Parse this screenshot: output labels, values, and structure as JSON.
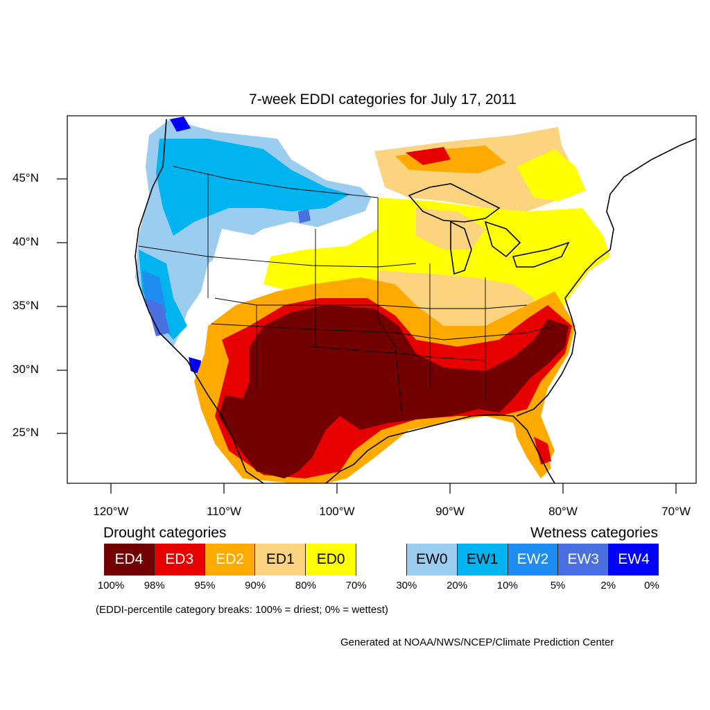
{
  "title": "7-week EDDI categories for July 17, 2011",
  "map": {
    "lat_labels": [
      "45°N",
      "40°N",
      "35°N",
      "30°N",
      "25°N"
    ],
    "lon_labels": [
      "120°W",
      "110°W",
      "100°W",
      "90°W",
      "80°W",
      "70°W"
    ],
    "colors": {
      "ED4": "#730000",
      "ED3": "#e60000",
      "ED2": "#ffaa00",
      "ED1": "#fcd37f",
      "ED0": "#ffff00",
      "neutral": "#ffffff",
      "EW0": "#9bcdf0",
      "EW1": "#00b4f0",
      "EW2": "#1e8cf0",
      "EW3": "#4a6fe0",
      "EW4": "#0000ff"
    }
  },
  "legend": {
    "drought_heading": "Drought categories",
    "wetness_heading": "Wetness categories",
    "categories": [
      {
        "label": "ED4",
        "color": "#730000",
        "text_color": "#ffffff"
      },
      {
        "label": "ED3",
        "color": "#e60000",
        "text_color": "#ffffff"
      },
      {
        "label": "ED2",
        "color": "#ffaa00",
        "text_color": "#ffffff"
      },
      {
        "label": "ED1",
        "color": "#fcd37f",
        "text_color": "#000000"
      },
      {
        "label": "ED0",
        "color": "#ffff00",
        "text_color": "#000000"
      },
      {
        "label": "",
        "color": "#ffffff",
        "text_color": "#000000"
      },
      {
        "label": "EW0",
        "color": "#9bcdf0",
        "text_color": "#000000"
      },
      {
        "label": "EW1",
        "color": "#00b4f0",
        "text_color": "#000000"
      },
      {
        "label": "EW2",
        "color": "#1e8cf0",
        "text_color": "#ffffff"
      },
      {
        "label": "EW3",
        "color": "#4a6fe0",
        "text_color": "#ffffff"
      },
      {
        "label": "EW4",
        "color": "#0000ff",
        "text_color": "#ffffff"
      }
    ],
    "breaks": [
      "100%",
      "98%",
      "95%",
      "90%",
      "80%",
      "70%",
      "30%",
      "20%",
      "10%",
      "5%",
      "2%",
      "0%"
    ]
  },
  "note": "(EDDI-percentile category breaks: 100% = driest; 0% = wettest)",
  "credit": "Generated at NOAA/NWS/NCEP/Climate Prediction Center"
}
